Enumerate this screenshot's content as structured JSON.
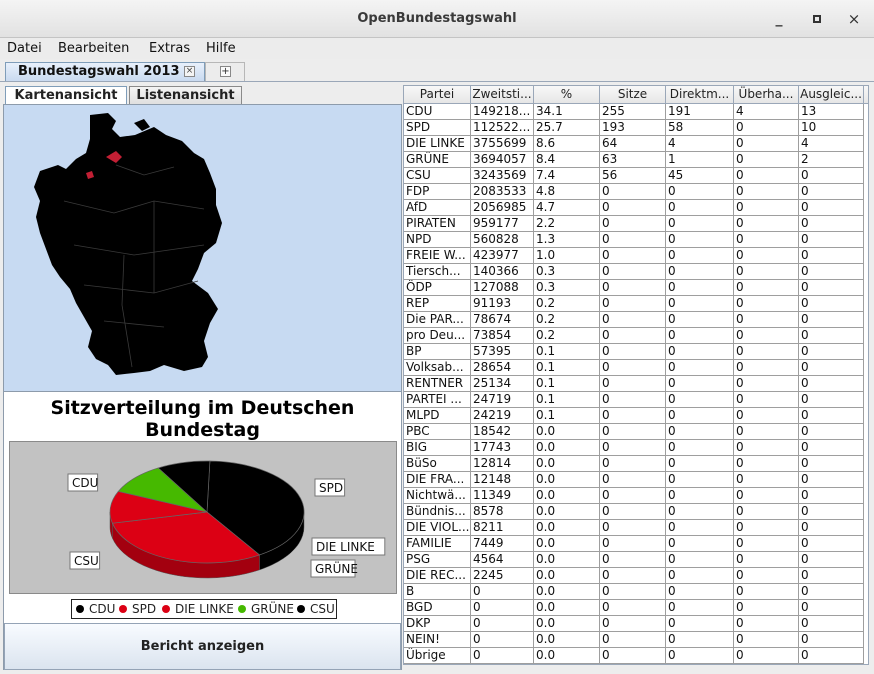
{
  "window": {
    "title": "OpenBundestagswahl",
    "minimize_label": "_",
    "close_label": "×"
  },
  "menu": [
    "Datei",
    "Bearbeiten",
    "Extras",
    "Hilfe"
  ],
  "doc_tab": {
    "label": "Bundestagswahl 2013",
    "close": "×",
    "add": "+"
  },
  "view_tabs": {
    "map": "Kartenansicht",
    "list": "Listenansicht"
  },
  "colors": {
    "CDU": "#000000",
    "SPD": "#dc0014",
    "DIE LINKE": "#dc0014",
    "GRÜNE": "#46b900",
    "CSU": "#000000",
    "map_bg": "#c7daf2",
    "map_highlight": "#c21f34"
  },
  "chart_data": {
    "type": "pie",
    "title": "Sitzverteilung im Deutschen Bundestag",
    "series": [
      {
        "name": "CDU",
        "value": 255,
        "color": "#000000"
      },
      {
        "name": "SPD",
        "value": 193,
        "color": "#dc0014"
      },
      {
        "name": "DIE LINKE",
        "value": 64,
        "color": "#dc0014"
      },
      {
        "name": "GRÜNE",
        "value": 63,
        "color": "#46b900"
      },
      {
        "name": "CSU",
        "value": 56,
        "color": "#000000"
      }
    ],
    "labels_shown": [
      "CDU",
      "SPD",
      "DIE LINKE",
      "GRÜNE",
      "CSU"
    ],
    "legend": [
      "CDU",
      "SPD",
      "DIE LINKE",
      "GRÜNE",
      "CSU"
    ],
    "legend_placement": "bottom"
  },
  "report_button": "Bericht anzeigen",
  "table": {
    "columns": [
      "Partei",
      "Zweitsti...",
      "%",
      "Sitze",
      "Direktm...",
      "Überha...",
      "Ausgleic..."
    ],
    "rows": [
      [
        "CDU",
        "149218...",
        "34.1",
        "255",
        "191",
        "4",
        "13"
      ],
      [
        "SPD",
        "112522...",
        "25.7",
        "193",
        "58",
        "0",
        "10"
      ],
      [
        "DIE LINKE",
        "3755699",
        "8.6",
        "64",
        "4",
        "0",
        "4"
      ],
      [
        "GRÜNE",
        "3694057",
        "8.4",
        "63",
        "1",
        "0",
        "2"
      ],
      [
        "CSU",
        "3243569",
        "7.4",
        "56",
        "45",
        "0",
        "0"
      ],
      [
        "FDP",
        "2083533",
        "4.8",
        "0",
        "0",
        "0",
        "0"
      ],
      [
        "AfD",
        "2056985",
        "4.7",
        "0",
        "0",
        "0",
        "0"
      ],
      [
        "PIRATEN",
        "959177",
        "2.2",
        "0",
        "0",
        "0",
        "0"
      ],
      [
        "NPD",
        "560828",
        "1.3",
        "0",
        "0",
        "0",
        "0"
      ],
      [
        "FREIE W...",
        "423977",
        "1.0",
        "0",
        "0",
        "0",
        "0"
      ],
      [
        "Tiersch...",
        "140366",
        "0.3",
        "0",
        "0",
        "0",
        "0"
      ],
      [
        "ÖDP",
        "127088",
        "0.3",
        "0",
        "0",
        "0",
        "0"
      ],
      [
        "REP",
        "91193",
        "0.2",
        "0",
        "0",
        "0",
        "0"
      ],
      [
        "Die PAR...",
        "78674",
        "0.2",
        "0",
        "0",
        "0",
        "0"
      ],
      [
        "pro Deu...",
        "73854",
        "0.2",
        "0",
        "0",
        "0",
        "0"
      ],
      [
        "BP",
        "57395",
        "0.1",
        "0",
        "0",
        "0",
        "0"
      ],
      [
        "Volksab...",
        "28654",
        "0.1",
        "0",
        "0",
        "0",
        "0"
      ],
      [
        "RENTNER",
        "25134",
        "0.1",
        "0",
        "0",
        "0",
        "0"
      ],
      [
        "PARTEI ...",
        "24719",
        "0.1",
        "0",
        "0",
        "0",
        "0"
      ],
      [
        "MLPD",
        "24219",
        "0.1",
        "0",
        "0",
        "0",
        "0"
      ],
      [
        "PBC",
        "18542",
        "0.0",
        "0",
        "0",
        "0",
        "0"
      ],
      [
        "BIG",
        "17743",
        "0.0",
        "0",
        "0",
        "0",
        "0"
      ],
      [
        "BüSo",
        "12814",
        "0.0",
        "0",
        "0",
        "0",
        "0"
      ],
      [
        "DIE FRA...",
        "12148",
        "0.0",
        "0",
        "0",
        "0",
        "0"
      ],
      [
        "Nichtwä...",
        "11349",
        "0.0",
        "0",
        "0",
        "0",
        "0"
      ],
      [
        "Bündnis...",
        "8578",
        "0.0",
        "0",
        "0",
        "0",
        "0"
      ],
      [
        "DIE VIOL...",
        "8211",
        "0.0",
        "0",
        "0",
        "0",
        "0"
      ],
      [
        "FAMILIE",
        "7449",
        "0.0",
        "0",
        "0",
        "0",
        "0"
      ],
      [
        "PSG",
        "4564",
        "0.0",
        "0",
        "0",
        "0",
        "0"
      ],
      [
        "DIE REC...",
        "2245",
        "0.0",
        "0",
        "0",
        "0",
        "0"
      ],
      [
        "B",
        "0",
        "0.0",
        "0",
        "0",
        "0",
        "0"
      ],
      [
        "BGD",
        "0",
        "0.0",
        "0",
        "0",
        "0",
        "0"
      ],
      [
        "DKP",
        "0",
        "0.0",
        "0",
        "0",
        "0",
        "0"
      ],
      [
        "NEIN!",
        "0",
        "0.0",
        "0",
        "0",
        "0",
        "0"
      ],
      [
        "Übrige",
        "0",
        "0.0",
        "0",
        "0",
        "0",
        "0"
      ]
    ]
  }
}
